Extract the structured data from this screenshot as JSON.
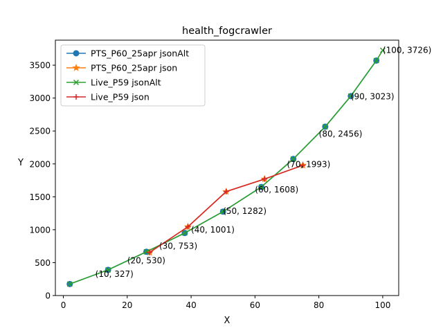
{
  "chart_data": {
    "type": "line",
    "title": "health_fogcrawler",
    "xlabel": "X",
    "ylabel": "Y",
    "xlim": [
      -2.5,
      105
    ],
    "ylim": [
      0,
      3880
    ],
    "xticks": [
      0,
      20,
      40,
      60,
      80,
      100
    ],
    "yticks": [
      0,
      500,
      1000,
      1500,
      2000,
      2500,
      3000,
      3500
    ],
    "grid": false,
    "legend_position": "top-left",
    "series": [
      {
        "name": "PTS_P60_25apr jsonAlt",
        "color": "#1f77b4",
        "marker": "circle",
        "x": [
          2,
          14,
          26,
          38,
          50,
          62,
          72,
          82,
          90,
          98
        ],
        "y": [
          175,
          390,
          665,
          950,
          1275,
          1650,
          2075,
          2565,
          3030,
          3570
        ]
      },
      {
        "name": "PTS_P60_25apr json",
        "color": "#ff7f0e",
        "marker": "star",
        "x": [
          27,
          39,
          51,
          63,
          75
        ],
        "y": [
          655,
          1045,
          1580,
          1770,
          1980
        ]
      },
      {
        "name": "Live_P59 jsonAlt",
        "color": "#2ca02c",
        "marker": "x",
        "x": [
          2,
          14,
          26,
          38,
          50,
          62,
          72,
          82,
          90,
          98,
          100
        ],
        "y": [
          175,
          390,
          665,
          950,
          1275,
          1650,
          2075,
          2565,
          3030,
          3570,
          3726
        ]
      },
      {
        "name": "Live_P59 json",
        "color": "#d62728",
        "marker": "plus",
        "x": [
          27,
          39,
          51,
          63,
          75
        ],
        "y": [
          655,
          1045,
          1580,
          1770,
          1980
        ]
      }
    ],
    "annotations": [
      {
        "text": "(10, 327)",
        "x": 10,
        "y": 327
      },
      {
        "text": "(20, 530)",
        "x": 20,
        "y": 530
      },
      {
        "text": "(30, 753)",
        "x": 30,
        "y": 753
      },
      {
        "text": "(40, 1001)",
        "x": 40,
        "y": 1001
      },
      {
        "text": "(50, 1282)",
        "x": 50,
        "y": 1282
      },
      {
        "text": "(60, 1608)",
        "x": 60,
        "y": 1608
      },
      {
        "text": "(70, 1993)",
        "x": 70,
        "y": 1993
      },
      {
        "text": "(80, 2456)",
        "x": 80,
        "y": 2456
      },
      {
        "text": "(90, 3023)",
        "x": 90,
        "y": 3023
      },
      {
        "text": "(100, 3726)",
        "x": 100,
        "y": 3726
      }
    ]
  }
}
